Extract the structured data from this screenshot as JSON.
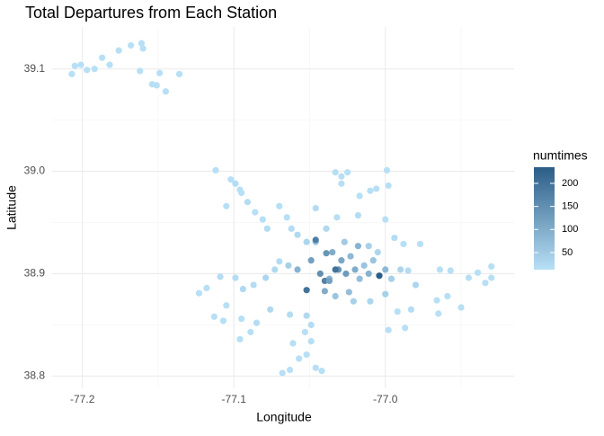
{
  "chart_data": {
    "type": "scatter",
    "title": "Total Departures from Each Station",
    "x_label": "Longitude",
    "y_label": "Latitude",
    "xlim": [
      -77.22,
      -76.915
    ],
    "ylim": [
      38.788,
      39.141
    ],
    "xticks": [
      {
        "value": -77.2,
        "label": "-77.2"
      },
      {
        "value": -77.1,
        "label": "-77.1"
      },
      {
        "value": -77,
        "label": "-77.0"
      }
    ],
    "yticks": [
      {
        "value": 38.8,
        "label": "38.8"
      },
      {
        "value": 38.9,
        "label": "38.9"
      },
      {
        "value": 39,
        "label": "39.0"
      },
      {
        "value": 39.1,
        "label": "39.1"
      }
    ],
    "x_minor": [
      -77.15,
      -77.05,
      -76.95
    ],
    "y_minor": [
      38.85,
      38.95,
      39.05
    ],
    "grid": true,
    "color_scale": {
      "title": "numtimes",
      "lim": [
        13,
        235
      ],
      "ticks": [
        50,
        100,
        150,
        200
      ],
      "low": "#b8e0f6",
      "high": "#2c5d87"
    },
    "x": [
      -77.207,
      -77.205,
      -77.201,
      -77.197,
      -77.192,
      -77.187,
      -77.182,
      -77.176,
      -77.168,
      -77.161,
      -77.16,
      -77.162,
      -77.154,
      -77.151,
      -77.149,
      -77.145,
      -77.136,
      -77.112,
      -77.102,
      -77.099,
      -77.096,
      -77.095,
      -77.105,
      -77.091,
      -77.086,
      -77.081,
      -77.078,
      -77.07,
      -77.065,
      -77.062,
      -77.058,
      -77.052,
      -77.033,
      -77.029,
      -77.025,
      -77.029,
      -77.017,
      -77.01,
      -77.006,
      -76.999,
      -76.998,
      -77.0,
      -77.018,
      -77.032,
      -77.046,
      -77.039,
      -76.994,
      -76.988,
      -76.977,
      -76.964,
      -76.957,
      -76.945,
      -76.939,
      -76.93,
      -76.93,
      -76.934,
      -76.959,
      -76.966,
      -76.965,
      -76.95,
      -76.983,
      -76.992,
      -76.998,
      -76.987,
      -77.123,
      -77.118,
      -77.113,
      -77.107,
      -77.109,
      -77.099,
      -77.094,
      -77.105,
      -77.095,
      -77.096,
      -77.089,
      -77.085,
      -77.076,
      -77.079,
      -77.073,
      -77.087,
      -77.063,
      -77.052,
      -77.049,
      -77.053,
      -77.049,
      -77.061,
      -77.057,
      -77.052,
      -77.046,
      -77.042,
      -77.063,
      -77.068,
      -77.07,
      -77.064,
      -77.058,
      -76.985,
      -76.996,
      -76.99,
      -76.98,
      -77.005,
      -77.011,
      -77.021,
      -77.01,
      -77.0,
      -77.027,
      -77.046,
      -77.033,
      -77.024,
      -77.018,
      -77.008,
      -77.014,
      -77.017,
      -77.035,
      -77.04,
      -77.029,
      -77.023,
      -77.011,
      -77.0,
      -77.052,
      -77.026,
      -77.037,
      -77.031,
      -77.039,
      -77.043,
      -77.02,
      -77.04,
      -77.049,
      -77.046,
      -77.037,
      -77.033,
      -77.004
    ],
    "y": [
      39.095,
      39.103,
      39.104,
      39.099,
      39.1,
      39.111,
      39.104,
      39.118,
      39.123,
      39.125,
      39.12,
      39.098,
      39.085,
      39.084,
      39.096,
      39.078,
      39.095,
      39.001,
      38.992,
      38.988,
      38.982,
      38.979,
      38.966,
      38.97,
      38.96,
      38.953,
      38.944,
      38.966,
      38.955,
      38.944,
      38.938,
      38.931,
      38.999,
      38.995,
      38.999,
      38.988,
      38.976,
      38.981,
      38.983,
      39.001,
      38.986,
      38.953,
      38.957,
      38.955,
      38.964,
      38.944,
      38.935,
      38.929,
      38.929,
      38.904,
      38.903,
      38.896,
      38.901,
      38.907,
      38.896,
      38.891,
      38.878,
      38.874,
      38.861,
      38.867,
      38.865,
      38.863,
      38.845,
      38.847,
      38.881,
      38.886,
      38.858,
      38.854,
      38.897,
      38.896,
      38.885,
      38.869,
      38.856,
      38.836,
      38.843,
      38.852,
      38.865,
      38.896,
      38.904,
      38.889,
      38.86,
      38.859,
      38.85,
      38.843,
      38.834,
      38.832,
      38.817,
      38.821,
      38.808,
      38.805,
      38.806,
      38.803,
      38.912,
      38.908,
      38.904,
      38.903,
      38.895,
      38.904,
      38.889,
      38.921,
      38.927,
      38.873,
      38.873,
      38.88,
      38.931,
      38.931,
      38.878,
      38.882,
      38.927,
      38.913,
      38.908,
      38.895,
      38.921,
      38.883,
      38.913,
      38.917,
      38.9,
      38.904,
      38.884,
      38.9,
      38.895,
      38.904,
      38.92,
      38.9,
      38.904,
      38.893,
      38.913,
      38.933,
      38.893,
      38.904,
      38.898
    ],
    "values": [
      15,
      15,
      15,
      15,
      15,
      15,
      15,
      15,
      15,
      15,
      15,
      15,
      15,
      15,
      15,
      15,
      15,
      15,
      15,
      20,
      15,
      15,
      15,
      20,
      15,
      15,
      20,
      15,
      15,
      20,
      25,
      30,
      15,
      15,
      15,
      15,
      15,
      15,
      15,
      15,
      15,
      15,
      20,
      15,
      20,
      25,
      20,
      15,
      15,
      15,
      15,
      15,
      15,
      15,
      15,
      15,
      15,
      15,
      15,
      15,
      20,
      15,
      15,
      15,
      15,
      15,
      15,
      15,
      20,
      20,
      25,
      15,
      15,
      15,
      15,
      20,
      25,
      30,
      25,
      20,
      20,
      25,
      20,
      15,
      15,
      15,
      15,
      15,
      15,
      15,
      15,
      15,
      20,
      40,
      90,
      20,
      40,
      30,
      30,
      30,
      40,
      40,
      30,
      40,
      50,
      60,
      60,
      70,
      90,
      60,
      60,
      70,
      100,
      100,
      110,
      80,
      90,
      80,
      200,
      130,
      90,
      140,
      140,
      150,
      100,
      170,
      120,
      180,
      120,
      200,
      235
    ]
  }
}
